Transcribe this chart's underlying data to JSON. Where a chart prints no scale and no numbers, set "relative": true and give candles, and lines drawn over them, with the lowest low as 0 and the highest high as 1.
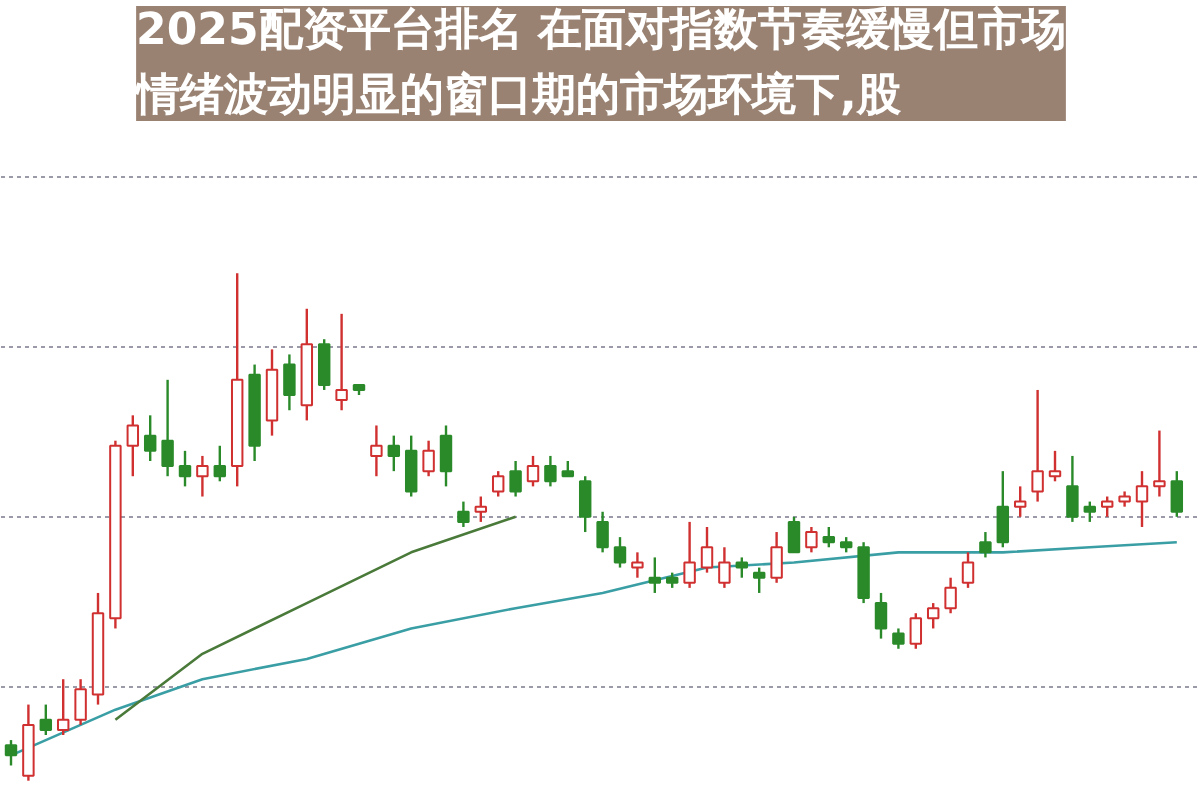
{
  "chart_data": {
    "type": "candlestick",
    "relative": true,
    "title": "2025配资平台排名 在面对指数节奏缓慢但市场情绪波动明显的窗口期的市场环境下,股",
    "grid": "y",
    "categories": [
      null,
      null,
      null,
      null,
      null,
      null,
      null,
      null,
      null,
      null,
      null,
      null,
      null,
      null,
      null,
      null,
      null,
      null,
      null,
      null,
      null,
      null,
      null,
      null,
      null,
      null,
      null,
      null,
      null,
      null,
      null,
      null,
      null,
      null,
      null,
      null,
      null,
      null,
      null,
      null,
      null,
      null,
      null,
      null,
      null,
      null,
      null,
      null,
      null,
      null,
      null,
      null,
      null,
      null,
      null,
      null,
      null,
      null,
      null,
      null,
      null,
      null,
      null,
      null,
      null,
      null,
      null,
      null
    ],
    "ohlc": [
      [
        0.07,
        0.08,
        0.03,
        0.05
      ],
      [
        0.01,
        0.15,
        0.0,
        0.11
      ],
      [
        0.12,
        0.15,
        0.09,
        0.1
      ],
      [
        0.1,
        0.2,
        0.09,
        0.12
      ],
      [
        0.12,
        0.2,
        0.11,
        0.18
      ],
      [
        0.17,
        0.37,
        0.15,
        0.33
      ],
      [
        0.32,
        0.67,
        0.3,
        0.66
      ],
      [
        0.66,
        0.72,
        0.6,
        0.7
      ],
      [
        0.68,
        0.72,
        0.63,
        0.65
      ],
      [
        0.67,
        0.79,
        0.6,
        0.62
      ],
      [
        0.62,
        0.65,
        0.58,
        0.6
      ],
      [
        0.6,
        0.64,
        0.56,
        0.62
      ],
      [
        0.62,
        0.66,
        0.59,
        0.6
      ],
      [
        0.62,
        1.0,
        0.58,
        0.79
      ],
      [
        0.8,
        0.82,
        0.63,
        0.66
      ],
      [
        0.71,
        0.85,
        0.68,
        0.81
      ],
      [
        0.82,
        0.84,
        0.73,
        0.76
      ],
      [
        0.74,
        0.93,
        0.71,
        0.86
      ],
      [
        0.86,
        0.87,
        0.77,
        0.78
      ],
      [
        0.75,
        0.92,
        0.73,
        0.77
      ],
      [
        0.78,
        0.78,
        0.76,
        0.77
      ],
      [
        0.64,
        0.7,
        0.6,
        0.66
      ],
      [
        0.66,
        0.68,
        0.61,
        0.64
      ],
      [
        0.65,
        0.68,
        0.56,
        0.57
      ],
      [
        0.61,
        0.67,
        0.6,
        0.65
      ],
      [
        0.68,
        0.7,
        0.58,
        0.61
      ],
      [
        0.53,
        0.55,
        0.5,
        0.51
      ],
      [
        0.53,
        0.56,
        0.51,
        0.54
      ],
      [
        0.57,
        0.61,
        0.56,
        0.6
      ],
      [
        0.61,
        0.63,
        0.56,
        0.57
      ],
      [
        0.59,
        0.64,
        0.58,
        0.62
      ],
      [
        0.62,
        0.64,
        0.58,
        0.59
      ],
      [
        0.61,
        0.63,
        0.6,
        0.6
      ],
      [
        0.59,
        0.6,
        0.49,
        0.52
      ],
      [
        0.51,
        0.53,
        0.45,
        0.46
      ],
      [
        0.46,
        0.48,
        0.42,
        0.43
      ],
      [
        0.42,
        0.45,
        0.4,
        0.43
      ],
      [
        0.4,
        0.44,
        0.37,
        0.39
      ],
      [
        0.4,
        0.41,
        0.38,
        0.39
      ],
      [
        0.39,
        0.51,
        0.38,
        0.43
      ],
      [
        0.42,
        0.5,
        0.41,
        0.46
      ],
      [
        0.39,
        0.46,
        0.38,
        0.43
      ],
      [
        0.43,
        0.44,
        0.4,
        0.42
      ],
      [
        0.41,
        0.42,
        0.37,
        0.4
      ],
      [
        0.4,
        0.49,
        0.39,
        0.46
      ],
      [
        0.51,
        0.52,
        0.45,
        0.45
      ],
      [
        0.46,
        0.5,
        0.45,
        0.49
      ],
      [
        0.48,
        0.5,
        0.46,
        0.47
      ],
      [
        0.47,
        0.48,
        0.45,
        0.46
      ],
      [
        0.46,
        0.47,
        0.35,
        0.36
      ],
      [
        0.35,
        0.37,
        0.28,
        0.3
      ],
      [
        0.29,
        0.3,
        0.26,
        0.27
      ],
      [
        0.27,
        0.33,
        0.26,
        0.32
      ],
      [
        0.32,
        0.35,
        0.3,
        0.34
      ],
      [
        0.34,
        0.4,
        0.33,
        0.38
      ],
      [
        0.39,
        0.45,
        0.38,
        0.43
      ],
      [
        0.47,
        0.49,
        0.44,
        0.45
      ],
      [
        0.54,
        0.61,
        0.46,
        0.47
      ],
      [
        0.54,
        0.58,
        0.52,
        0.55
      ],
      [
        0.57,
        0.77,
        0.55,
        0.61
      ],
      [
        0.6,
        0.65,
        0.59,
        0.61
      ],
      [
        0.58,
        0.64,
        0.51,
        0.52
      ],
      [
        0.54,
        0.55,
        0.51,
        0.53
      ],
      [
        0.54,
        0.56,
        0.52,
        0.55
      ],
      [
        0.55,
        0.57,
        0.54,
        0.56
      ],
      [
        0.55,
        0.61,
        0.5,
        0.58
      ],
      [
        0.58,
        0.69,
        0.56,
        0.59
      ],
      [
        0.59,
        0.61,
        0.52,
        0.53
      ]
    ],
    "colors": [
      "#2a8a2a",
      "#d03030",
      "#2a8a2a",
      "#d03030",
      "#d03030",
      "#d03030",
      "#d03030",
      "#d03030",
      "#2a8a2a",
      "#2a8a2a",
      "#2a8a2a",
      "#d03030",
      "#2a8a2a",
      "#d03030",
      "#2a8a2a",
      "#d03030",
      "#2a8a2a",
      "#d03030",
      "#2a8a2a",
      "#d03030",
      "#2a8a2a",
      "#d03030",
      "#2a8a2a",
      "#2a8a2a",
      "#d03030",
      "#2a8a2a",
      "#2a8a2a",
      "#d03030",
      "#d03030",
      "#2a8a2a",
      "#d03030",
      "#2a8a2a",
      "#2a8a2a",
      "#2a8a2a",
      "#2a8a2a",
      "#2a8a2a",
      "#d03030",
      "#2a8a2a",
      "#2a8a2a",
      "#d03030",
      "#d03030",
      "#d03030",
      "#2a8a2a",
      "#2a8a2a",
      "#d03030",
      "#2a8a2a",
      "#d03030",
      "#2a8a2a",
      "#2a8a2a",
      "#2a8a2a",
      "#2a8a2a",
      "#2a8a2a",
      "#d03030",
      "#d03030",
      "#d03030",
      "#d03030",
      "#2a8a2a",
      "#2a8a2a",
      "#d03030",
      "#d03030",
      "#d03030",
      "#2a8a2a",
      "#2a8a2a",
      "#d03030",
      "#d03030",
      "#d03030",
      "#d03030",
      "#2a8a2a"
    ],
    "series": [
      {
        "type": "line",
        "color": "#3a9ea5",
        "values": [
          0.05,
          null,
          null,
          null,
          null,
          null,
          0.14,
          null,
          null,
          null,
          null,
          0.2,
          null,
          null,
          null,
          null,
          null,
          0.24,
          null,
          null,
          null,
          null,
          null,
          0.3,
          null,
          null,
          null,
          null,
          null,
          0.34,
          null,
          null,
          null,
          null,
          0.37,
          null,
          null,
          null,
          null,
          null,
          0.42,
          null,
          null,
          null,
          null,
          0.43,
          null,
          null,
          null,
          null,
          null,
          0.45,
          null,
          null,
          null,
          null,
          null,
          0.45,
          null,
          null,
          null,
          null,
          0.46,
          null,
          null,
          null,
          null,
          0.47
        ]
      },
      {
        "type": "line",
        "color": "#4a7a3a",
        "values": [
          null,
          null,
          null,
          null,
          null,
          null,
          0.12,
          null,
          null,
          null,
          null,
          0.25,
          null,
          null,
          null,
          null,
          null,
          0.35,
          null,
          null,
          null,
          null,
          null,
          0.45,
          null,
          null,
          null,
          null,
          null,
          0.52,
          null,
          null,
          null,
          null,
          null,
          null,
          null,
          null,
          null,
          null,
          null,
          null,
          null,
          null,
          null,
          null,
          null,
          null,
          null,
          null,
          null,
          null,
          null,
          null,
          null,
          null,
          null,
          null,
          null,
          null,
          null,
          null,
          null,
          null,
          null,
          null,
          null,
          null
        ]
      }
    ]
  }
}
